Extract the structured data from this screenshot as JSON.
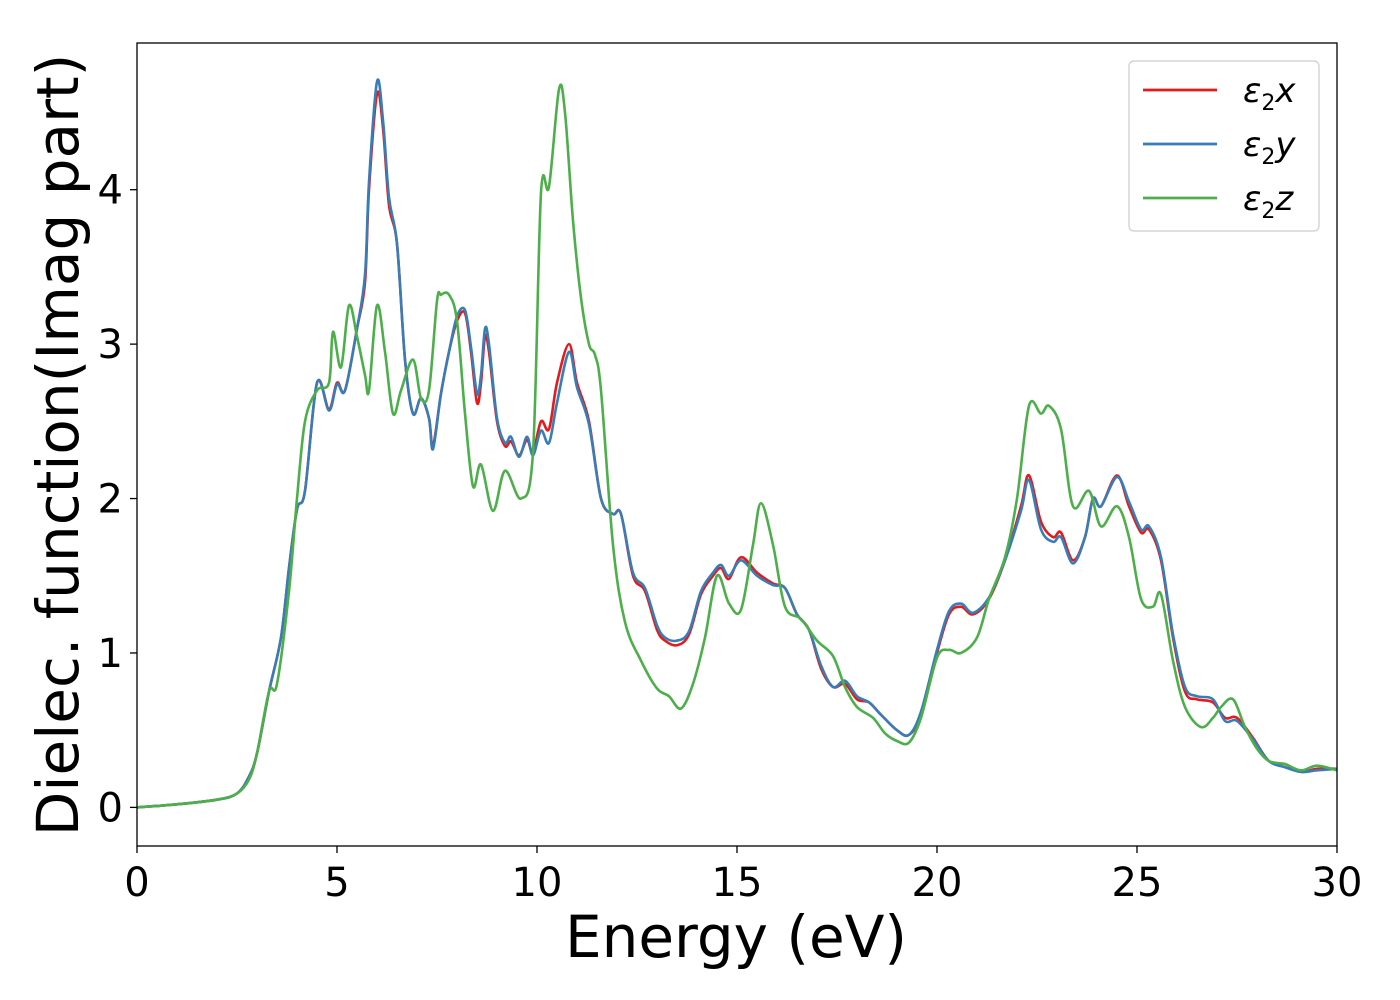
{
  "chart_data": {
    "type": "line",
    "xlabel": "Energy (eV)",
    "ylabel": "Dielec. function(Imag part)",
    "xlim": [
      0,
      30
    ],
    "ylim": [
      -0.25,
      4.95
    ],
    "xticks": [
      0,
      5,
      10,
      15,
      20,
      25,
      30
    ],
    "yticks": [
      0,
      1,
      2,
      3,
      4
    ],
    "grid": false,
    "legend_position": "top-right",
    "series": [
      {
        "name": "ε2x",
        "legend_main": "ε",
        "legend_sub": "2",
        "legend_var": "x",
        "color": "#e41a1c",
        "points": [
          [
            0,
            0.0
          ],
          [
            1,
            0.02
          ],
          [
            2,
            0.05
          ],
          [
            2.5,
            0.09
          ],
          [
            2.8,
            0.2
          ],
          [
            3.0,
            0.35
          ],
          [
            3.3,
            0.75
          ],
          [
            3.6,
            1.1
          ],
          [
            3.8,
            1.55
          ],
          [
            4.0,
            1.93
          ],
          [
            4.2,
            2.05
          ],
          [
            4.5,
            2.75
          ],
          [
            4.8,
            2.58
          ],
          [
            5.0,
            2.75
          ],
          [
            5.2,
            2.7
          ],
          [
            5.5,
            3.1
          ],
          [
            5.7,
            3.4
          ],
          [
            5.8,
            4.0
          ],
          [
            6.0,
            4.62
          ],
          [
            6.15,
            4.4
          ],
          [
            6.3,
            3.9
          ],
          [
            6.5,
            3.65
          ],
          [
            6.7,
            2.9
          ],
          [
            6.9,
            2.55
          ],
          [
            7.1,
            2.65
          ],
          [
            7.3,
            2.52
          ],
          [
            7.4,
            2.34
          ],
          [
            7.6,
            2.68
          ],
          [
            7.8,
            2.95
          ],
          [
            8.0,
            3.15
          ],
          [
            8.2,
            3.2
          ],
          [
            8.35,
            2.95
          ],
          [
            8.5,
            2.62
          ],
          [
            8.6,
            2.75
          ],
          [
            8.7,
            3.05
          ],
          [
            8.8,
            2.95
          ],
          [
            9.0,
            2.5
          ],
          [
            9.2,
            2.34
          ],
          [
            9.35,
            2.37
          ],
          [
            9.55,
            2.28
          ],
          [
            9.75,
            2.38
          ],
          [
            9.9,
            2.3
          ],
          [
            10.1,
            2.5
          ],
          [
            10.3,
            2.45
          ],
          [
            10.5,
            2.75
          ],
          [
            10.8,
            3.0
          ],
          [
            11.0,
            2.75
          ],
          [
            11.3,
            2.5
          ],
          [
            11.6,
            2.0
          ],
          [
            11.9,
            1.9
          ],
          [
            12.1,
            1.9
          ],
          [
            12.4,
            1.5
          ],
          [
            12.7,
            1.4
          ],
          [
            13.0,
            1.15
          ],
          [
            13.2,
            1.08
          ],
          [
            13.5,
            1.05
          ],
          [
            13.8,
            1.12
          ],
          [
            14.1,
            1.38
          ],
          [
            14.4,
            1.5
          ],
          [
            14.6,
            1.55
          ],
          [
            14.8,
            1.48
          ],
          [
            15.1,
            1.62
          ],
          [
            15.5,
            1.52
          ],
          [
            15.9,
            1.45
          ],
          [
            16.2,
            1.42
          ],
          [
            16.5,
            1.25
          ],
          [
            16.8,
            1.15
          ],
          [
            17.1,
            0.9
          ],
          [
            17.4,
            0.78
          ],
          [
            17.7,
            0.8
          ],
          [
            18.0,
            0.7
          ],
          [
            18.3,
            0.68
          ],
          [
            18.6,
            0.6
          ],
          [
            19.0,
            0.5
          ],
          [
            19.3,
            0.47
          ],
          [
            19.6,
            0.6
          ],
          [
            20.0,
            1.0
          ],
          [
            20.3,
            1.25
          ],
          [
            20.6,
            1.3
          ],
          [
            20.9,
            1.25
          ],
          [
            21.3,
            1.35
          ],
          [
            21.7,
            1.6
          ],
          [
            22.1,
            1.95
          ],
          [
            22.3,
            2.15
          ],
          [
            22.6,
            1.85
          ],
          [
            22.9,
            1.75
          ],
          [
            23.1,
            1.78
          ],
          [
            23.4,
            1.6
          ],
          [
            23.7,
            1.75
          ],
          [
            23.9,
            2.0
          ],
          [
            24.1,
            1.95
          ],
          [
            24.5,
            2.15
          ],
          [
            24.8,
            1.95
          ],
          [
            25.1,
            1.78
          ],
          [
            25.3,
            1.8
          ],
          [
            25.6,
            1.6
          ],
          [
            25.9,
            1.1
          ],
          [
            26.2,
            0.75
          ],
          [
            26.5,
            0.7
          ],
          [
            26.9,
            0.68
          ],
          [
            27.2,
            0.58
          ],
          [
            27.5,
            0.58
          ],
          [
            27.9,
            0.45
          ],
          [
            28.3,
            0.3
          ],
          [
            28.7,
            0.28
          ],
          [
            29.1,
            0.23
          ],
          [
            29.5,
            0.25
          ],
          [
            30,
            0.25
          ]
        ]
      },
      {
        "name": "ε2y",
        "legend_main": "ε",
        "legend_sub": "2",
        "legend_var": "y",
        "color": "#377eb8",
        "points": [
          [
            0,
            0.0
          ],
          [
            1,
            0.02
          ],
          [
            2,
            0.05
          ],
          [
            2.5,
            0.09
          ],
          [
            2.8,
            0.2
          ],
          [
            3.0,
            0.35
          ],
          [
            3.3,
            0.75
          ],
          [
            3.6,
            1.1
          ],
          [
            3.8,
            1.55
          ],
          [
            4.0,
            1.93
          ],
          [
            4.2,
            2.05
          ],
          [
            4.5,
            2.75
          ],
          [
            4.8,
            2.57
          ],
          [
            5.0,
            2.74
          ],
          [
            5.2,
            2.7
          ],
          [
            5.5,
            3.1
          ],
          [
            5.7,
            3.45
          ],
          [
            5.8,
            4.05
          ],
          [
            6.0,
            4.7
          ],
          [
            6.15,
            4.45
          ],
          [
            6.3,
            3.95
          ],
          [
            6.5,
            3.65
          ],
          [
            6.7,
            2.9
          ],
          [
            6.9,
            2.55
          ],
          [
            7.1,
            2.65
          ],
          [
            7.3,
            2.52
          ],
          [
            7.4,
            2.32
          ],
          [
            7.6,
            2.68
          ],
          [
            7.8,
            2.95
          ],
          [
            8.0,
            3.18
          ],
          [
            8.2,
            3.22
          ],
          [
            8.35,
            2.98
          ],
          [
            8.5,
            2.68
          ],
          [
            8.6,
            2.8
          ],
          [
            8.7,
            3.1
          ],
          [
            8.8,
            3.0
          ],
          [
            9.0,
            2.52
          ],
          [
            9.2,
            2.36
          ],
          [
            9.35,
            2.4
          ],
          [
            9.55,
            2.27
          ],
          [
            9.75,
            2.4
          ],
          [
            9.9,
            2.28
          ],
          [
            10.1,
            2.44
          ],
          [
            10.3,
            2.36
          ],
          [
            10.5,
            2.62
          ],
          [
            10.8,
            2.95
          ],
          [
            11.0,
            2.72
          ],
          [
            11.3,
            2.48
          ],
          [
            11.6,
            2.0
          ],
          [
            11.9,
            1.9
          ],
          [
            12.1,
            1.9
          ],
          [
            12.4,
            1.52
          ],
          [
            12.7,
            1.42
          ],
          [
            13.0,
            1.18
          ],
          [
            13.2,
            1.1
          ],
          [
            13.5,
            1.08
          ],
          [
            13.8,
            1.14
          ],
          [
            14.1,
            1.4
          ],
          [
            14.4,
            1.52
          ],
          [
            14.6,
            1.57
          ],
          [
            14.8,
            1.5
          ],
          [
            15.1,
            1.6
          ],
          [
            15.5,
            1.5
          ],
          [
            15.9,
            1.44
          ],
          [
            16.2,
            1.42
          ],
          [
            16.5,
            1.25
          ],
          [
            16.8,
            1.15
          ],
          [
            17.1,
            0.92
          ],
          [
            17.4,
            0.78
          ],
          [
            17.7,
            0.82
          ],
          [
            18.0,
            0.72
          ],
          [
            18.3,
            0.68
          ],
          [
            18.6,
            0.6
          ],
          [
            19.0,
            0.5
          ],
          [
            19.3,
            0.47
          ],
          [
            19.6,
            0.62
          ],
          [
            20.0,
            1.02
          ],
          [
            20.3,
            1.27
          ],
          [
            20.6,
            1.32
          ],
          [
            20.9,
            1.26
          ],
          [
            21.3,
            1.36
          ],
          [
            21.7,
            1.6
          ],
          [
            22.1,
            1.92
          ],
          [
            22.3,
            2.12
          ],
          [
            22.6,
            1.8
          ],
          [
            22.9,
            1.72
          ],
          [
            23.1,
            1.75
          ],
          [
            23.4,
            1.58
          ],
          [
            23.7,
            1.75
          ],
          [
            23.9,
            2.0
          ],
          [
            24.1,
            1.95
          ],
          [
            24.5,
            2.14
          ],
          [
            24.8,
            1.98
          ],
          [
            25.1,
            1.8
          ],
          [
            25.3,
            1.82
          ],
          [
            25.6,
            1.62
          ],
          [
            25.9,
            1.12
          ],
          [
            26.2,
            0.78
          ],
          [
            26.5,
            0.72
          ],
          [
            26.9,
            0.7
          ],
          [
            27.2,
            0.56
          ],
          [
            27.5,
            0.56
          ],
          [
            27.9,
            0.44
          ],
          [
            28.3,
            0.3
          ],
          [
            28.7,
            0.26
          ],
          [
            29.1,
            0.23
          ],
          [
            29.5,
            0.24
          ],
          [
            30,
            0.25
          ]
        ]
      },
      {
        "name": "ε2z",
        "legend_main": "ε",
        "legend_sub": "2",
        "legend_var": "z",
        "color": "#4daf4a",
        "points": [
          [
            0,
            0.0
          ],
          [
            1,
            0.02
          ],
          [
            2,
            0.05
          ],
          [
            2.5,
            0.09
          ],
          [
            2.8,
            0.18
          ],
          [
            3.0,
            0.35
          ],
          [
            3.3,
            0.75
          ],
          [
            3.5,
            0.8
          ],
          [
            3.8,
            1.4
          ],
          [
            4.0,
            2.0
          ],
          [
            4.2,
            2.5
          ],
          [
            4.5,
            2.7
          ],
          [
            4.8,
            2.75
          ],
          [
            4.9,
            3.08
          ],
          [
            5.1,
            2.85
          ],
          [
            5.3,
            3.25
          ],
          [
            5.5,
            3.05
          ],
          [
            5.7,
            2.8
          ],
          [
            5.8,
            2.7
          ],
          [
            6.0,
            3.25
          ],
          [
            6.2,
            2.95
          ],
          [
            6.4,
            2.55
          ],
          [
            6.6,
            2.7
          ],
          [
            6.9,
            2.9
          ],
          [
            7.1,
            2.65
          ],
          [
            7.3,
            2.7
          ],
          [
            7.5,
            3.28
          ],
          [
            7.6,
            3.32
          ],
          [
            7.8,
            3.32
          ],
          [
            8.0,
            3.15
          ],
          [
            8.2,
            2.55
          ],
          [
            8.4,
            2.08
          ],
          [
            8.6,
            2.22
          ],
          [
            8.9,
            1.92
          ],
          [
            9.2,
            2.18
          ],
          [
            9.6,
            2.0
          ],
          [
            9.9,
            2.3
          ],
          [
            10.1,
            3.98
          ],
          [
            10.3,
            4.02
          ],
          [
            10.55,
            4.65
          ],
          [
            10.7,
            4.5
          ],
          [
            10.9,
            3.8
          ],
          [
            11.1,
            3.3
          ],
          [
            11.3,
            3.0
          ],
          [
            11.45,
            2.93
          ],
          [
            11.6,
            2.7
          ],
          [
            11.9,
            1.7
          ],
          [
            12.2,
            1.2
          ],
          [
            12.6,
            0.95
          ],
          [
            13.0,
            0.77
          ],
          [
            13.3,
            0.72
          ],
          [
            13.6,
            0.64
          ],
          [
            13.9,
            0.8
          ],
          [
            14.2,
            1.1
          ],
          [
            14.5,
            1.5
          ],
          [
            14.8,
            1.32
          ],
          [
            15.1,
            1.28
          ],
          [
            15.4,
            1.7
          ],
          [
            15.6,
            1.97
          ],
          [
            15.9,
            1.7
          ],
          [
            16.2,
            1.3
          ],
          [
            16.6,
            1.22
          ],
          [
            17.0,
            1.08
          ],
          [
            17.4,
            0.98
          ],
          [
            17.7,
            0.78
          ],
          [
            18.0,
            0.65
          ],
          [
            18.4,
            0.58
          ],
          [
            18.7,
            0.48
          ],
          [
            19.0,
            0.43
          ],
          [
            19.3,
            0.42
          ],
          [
            19.6,
            0.58
          ],
          [
            20.0,
            0.97
          ],
          [
            20.3,
            1.02
          ],
          [
            20.6,
            1.0
          ],
          [
            21.0,
            1.1
          ],
          [
            21.3,
            1.35
          ],
          [
            21.7,
            1.62
          ],
          [
            22.0,
            2.0
          ],
          [
            22.3,
            2.6
          ],
          [
            22.6,
            2.55
          ],
          [
            22.8,
            2.6
          ],
          [
            23.1,
            2.45
          ],
          [
            23.4,
            1.95
          ],
          [
            23.8,
            2.05
          ],
          [
            24.1,
            1.82
          ],
          [
            24.5,
            1.95
          ],
          [
            24.8,
            1.75
          ],
          [
            25.1,
            1.35
          ],
          [
            25.4,
            1.3
          ],
          [
            25.6,
            1.38
          ],
          [
            25.9,
            0.95
          ],
          [
            26.2,
            0.65
          ],
          [
            26.6,
            0.52
          ],
          [
            26.9,
            0.58
          ],
          [
            27.1,
            0.65
          ],
          [
            27.4,
            0.7
          ],
          [
            27.7,
            0.52
          ],
          [
            28.0,
            0.38
          ],
          [
            28.3,
            0.3
          ],
          [
            28.7,
            0.28
          ],
          [
            29.1,
            0.24
          ],
          [
            29.5,
            0.27
          ],
          [
            30,
            0.24
          ]
        ]
      }
    ]
  }
}
